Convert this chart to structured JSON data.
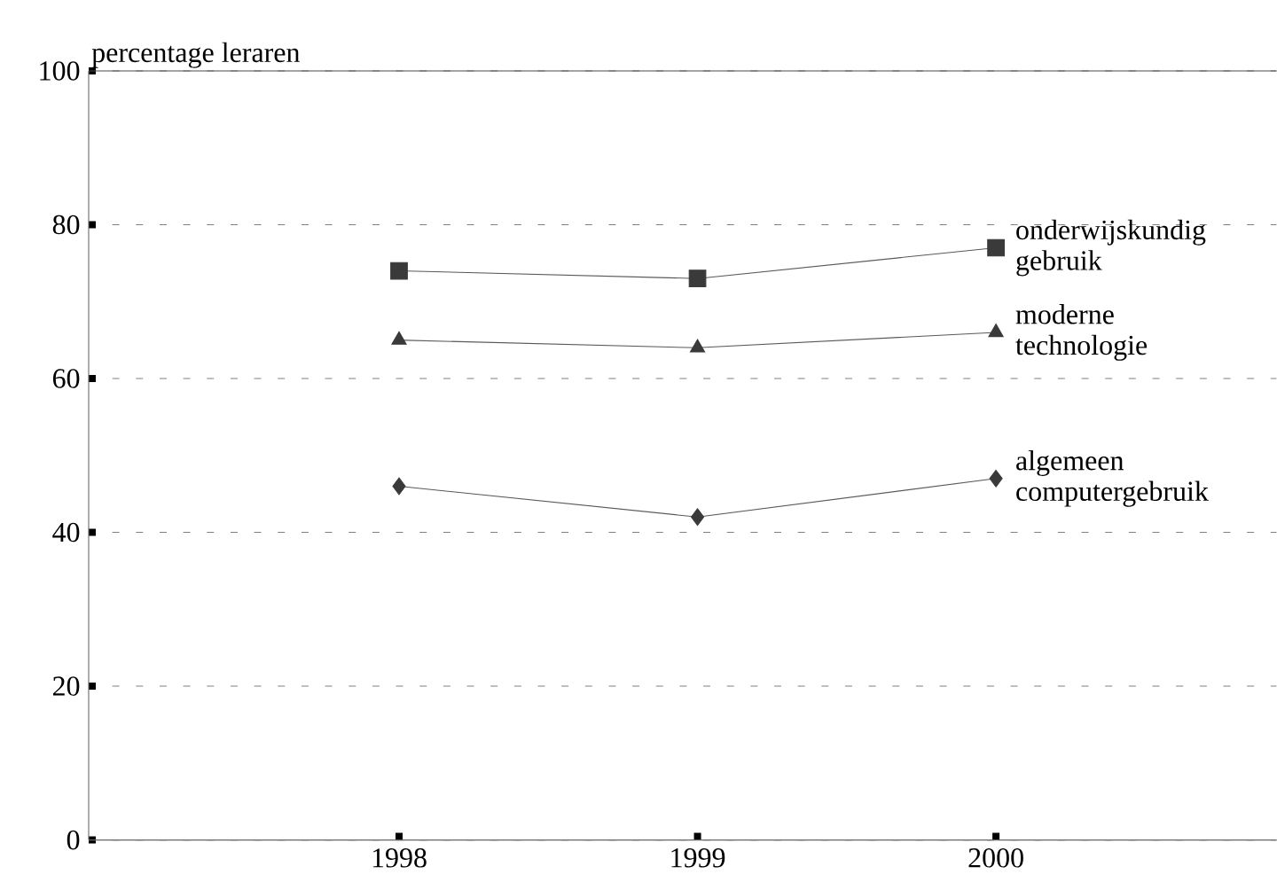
{
  "chart_data": {
    "type": "line",
    "ylabel": "percentage leraren",
    "x": [
      1998,
      1999,
      2000
    ],
    "xlim": [
      1996.96,
      2000.94
    ],
    "xticks": [
      1998,
      1999,
      2000
    ],
    "ylim": [
      0,
      100
    ],
    "yticks": [
      0,
      20,
      40,
      60,
      80,
      100
    ],
    "grid": "y",
    "line_style": "solid",
    "series": [
      {
        "name": "onderwijskundig gebruik",
        "color": "#3a3a3a",
        "marker": "square",
        "values": [
          74,
          73,
          77
        ]
      },
      {
        "name": "moderne technologie",
        "color": "#3a3a3a",
        "marker": "triangle",
        "values": [
          65,
          64,
          66
        ]
      },
      {
        "name": "algemeen computergebruik",
        "color": "#3a3a3a",
        "marker": "diamond",
        "values": [
          46,
          42,
          47
        ]
      }
    ]
  }
}
